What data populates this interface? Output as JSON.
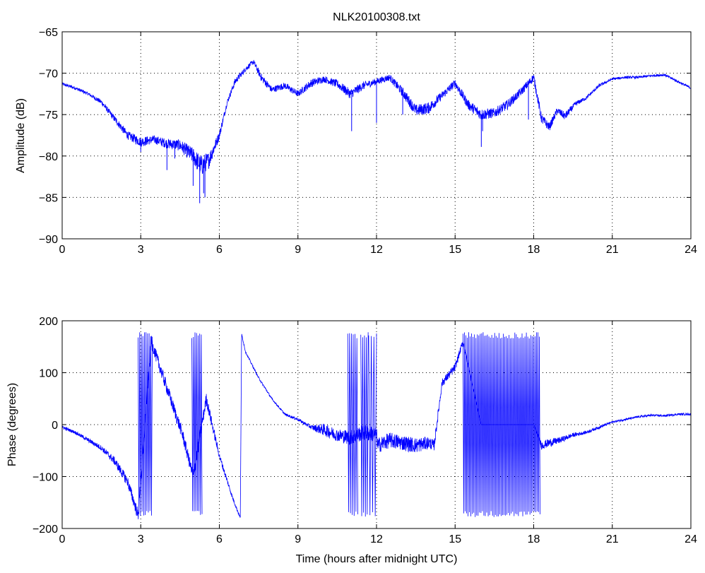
{
  "figure": {
    "title": "NLK20100308.txt"
  },
  "chart_data": [
    {
      "type": "line",
      "title": "NLK20100308.txt",
      "xlabel": "",
      "ylabel": "Amplitude (dB)",
      "xlim": [
        0,
        24
      ],
      "ylim": [
        -90,
        -65
      ],
      "xticks": [
        0,
        3,
        6,
        9,
        12,
        15,
        18,
        21,
        24
      ],
      "yticks": [
        -90,
        -85,
        -80,
        -75,
        -70,
        -65
      ],
      "xtick_labels": [
        "0",
        "3",
        "6",
        "9",
        "12",
        "15",
        "18",
        "21",
        "24"
      ],
      "ytick_labels": [
        "−90",
        "−85",
        "−80",
        "−75",
        "−70",
        "−65"
      ],
      "grid": true,
      "line_color": "#0000ff",
      "series": [
        {
          "x": [
            0,
            0.5,
            1,
            1.5,
            2,
            2.5,
            3,
            3.5,
            4,
            4.5,
            5,
            5.3,
            5.6,
            6,
            6.3,
            6.6,
            7,
            7.3,
            7.6,
            8,
            8.5,
            9,
            9.5,
            10,
            10.5,
            11,
            11.5,
            12,
            12.5,
            13,
            13.5,
            14,
            14.5,
            15,
            15.5,
            16,
            16.5,
            17,
            17.5,
            18,
            18.3,
            18.6,
            18.9,
            19.2,
            19.6,
            20,
            20.5,
            21,
            21.5,
            22,
            22.5,
            23,
            23.5,
            24
          ],
          "y": [
            -71.3,
            -71.8,
            -72.5,
            -73.5,
            -75.5,
            -77.5,
            -78.3,
            -78,
            -78.5,
            -78.7,
            -80,
            -81.2,
            -80.5,
            -77.5,
            -73.5,
            -71,
            -69.5,
            -68.6,
            -70.5,
            -72,
            -71.5,
            -72.5,
            -71.2,
            -70.7,
            -71.3,
            -72.5,
            -71.5,
            -71,
            -70.5,
            -72.3,
            -74.5,
            -74.2,
            -72.7,
            -71.2,
            -73.8,
            -75,
            -74.8,
            -73.8,
            -72.3,
            -70.5,
            -75.5,
            -76.5,
            -74.5,
            -75.2,
            -73.7,
            -73,
            -71.5,
            -70.7,
            -70.5,
            -70.5,
            -70.3,
            -70.2,
            -71,
            -71.8
          ],
          "noise": [
            0.2,
            0.2,
            0.2,
            0.3,
            0.4,
            0.5,
            0.6,
            0.5,
            0.6,
            0.7,
            1.0,
            1.3,
            1.0,
            0.5,
            0.3,
            0.4,
            0.3,
            0.3,
            0.5,
            0.4,
            0.4,
            0.4,
            0.5,
            0.4,
            0.5,
            0.6,
            0.5,
            0.4,
            0.4,
            0.6,
            0.7,
            0.7,
            0.5,
            0.5,
            0.6,
            0.7,
            0.6,
            0.6,
            0.5,
            0.5,
            0.6,
            0.5,
            0.4,
            0.5,
            0.3,
            0.2,
            0.2,
            0.15,
            0.15,
            0.15,
            0.15,
            0.15,
            0.15,
            0.15
          ]
        }
      ],
      "spikes": [
        {
          "x": 3.0,
          "y": -79.5
        },
        {
          "x": 4.0,
          "y": -81.7
        },
        {
          "x": 4.3,
          "y": -80.3
        },
        {
          "x": 5.0,
          "y": -83.6
        },
        {
          "x": 5.25,
          "y": -85.7
        },
        {
          "x": 5.4,
          "y": -84.5
        },
        {
          "x": 5.45,
          "y": -85.0
        },
        {
          "x": 11.05,
          "y": -77.0
        },
        {
          "x": 12.0,
          "y": -76.0
        },
        {
          "x": 13.0,
          "y": -75.0
        },
        {
          "x": 16.0,
          "y": -78.9
        },
        {
          "x": 16.05,
          "y": -77.0
        },
        {
          "x": 17.8,
          "y": -75.6
        }
      ]
    },
    {
      "type": "line",
      "title": "",
      "xlabel": "Time (hours after midnight UTC)",
      "ylabel": "Phase (degrees)",
      "xlim": [
        0,
        24
      ],
      "ylim": [
        -200,
        200
      ],
      "xticks": [
        0,
        3,
        6,
        9,
        12,
        15,
        18,
        21,
        24
      ],
      "yticks": [
        -200,
        -100,
        0,
        100,
        200
      ],
      "xtick_labels": [
        "0",
        "3",
        "6",
        "9",
        "12",
        "15",
        "18",
        "21",
        "24"
      ],
      "ytick_labels": [
        "−200",
        "−100",
        "0",
        "100",
        "200"
      ],
      "grid": true,
      "line_color": "#0000ff",
      "series": [
        {
          "x": [
            0,
            0.5,
            1,
            1.5,
            2,
            2.5,
            2.9,
            3.4,
            3.8,
            4.2,
            4.6,
            5.0,
            5.5,
            6.0,
            6.5,
            6.8,
            6.85,
            7,
            7.5,
            8,
            8.5,
            9,
            9.5,
            10,
            10.5,
            11,
            11.5,
            12,
            12.05,
            12.5,
            13,
            13.5,
            14,
            14.2,
            14.5,
            15,
            15.3,
            16,
            17,
            18,
            18.3,
            18.6,
            19,
            19.5,
            20,
            20.5,
            21,
            21.5,
            22,
            22.5,
            23,
            23.5,
            24
          ],
          "y": [
            -5,
            -15,
            -30,
            -45,
            -70,
            -110,
            -175,
            160,
            100,
            40,
            -20,
            -100,
            50,
            -60,
            -140,
            -180,
            175,
            140,
            90,
            50,
            20,
            10,
            -5,
            -10,
            -20,
            -25,
            -15,
            -20,
            -40,
            -30,
            -35,
            -40,
            -35,
            -40,
            80,
            110,
            160,
            0,
            0,
            0,
            -40,
            -35,
            -30,
            -20,
            -15,
            -5,
            5,
            10,
            15,
            18,
            17,
            20,
            20
          ],
          "noise": [
            3,
            3,
            4,
            5,
            8,
            10,
            12,
            12,
            12,
            12,
            12,
            12,
            12,
            6,
            4,
            2,
            2,
            2,
            2,
            2,
            2,
            3,
            4,
            12,
            12,
            15,
            15,
            15,
            15,
            15,
            15,
            15,
            12,
            10,
            8,
            8,
            6,
            0,
            0,
            0,
            8,
            8,
            6,
            4,
            3,
            3,
            2,
            2,
            2,
            2,
            2,
            2,
            2
          ]
        }
      ],
      "wrap_bands": [
        [
          2.9,
          3.45,
          0.06
        ],
        [
          4.95,
          5.35,
          0.06
        ],
        [
          10.9,
          11.3,
          0.07
        ],
        [
          11.4,
          11.7,
          0.07
        ],
        [
          11.7,
          12.05,
          0.1
        ],
        [
          15.3,
          18.25,
          0.055
        ]
      ]
    }
  ]
}
